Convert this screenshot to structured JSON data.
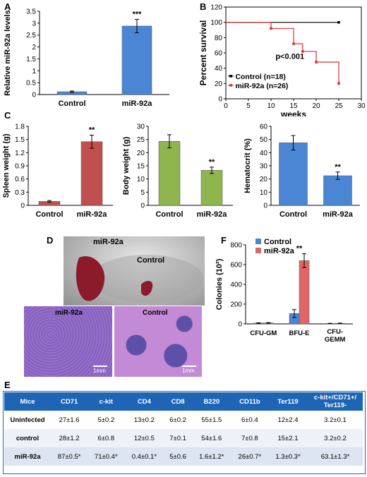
{
  "panels": {
    "A": "A",
    "B": "B",
    "C": "C",
    "D": "D",
    "E": "E",
    "F": "F"
  },
  "chart_data": [
    {
      "id": "A",
      "type": "bar",
      "categories": [
        "Control",
        "miR-92a"
      ],
      "values": [
        0.12,
        2.88
      ],
      "errors": [
        0.03,
        0.28
      ],
      "colors": [
        "#4a86d4",
        "#4a86d4"
      ],
      "ylabel": "Relative miR-92a levels",
      "ylim": [
        0,
        3.5
      ],
      "yticks": [
        "0",
        "0.5",
        "1",
        "1.5",
        "2",
        "2.5",
        "3",
        "3.5"
      ],
      "annotations": [
        "",
        "***"
      ]
    },
    {
      "id": "B",
      "type": "line",
      "xlabel": "weeks",
      "ylabel": "Percent survival",
      "xlim": [
        0,
        30
      ],
      "ylim": [
        0,
        120
      ],
      "xticks": [
        "0",
        "5",
        "10",
        "15",
        "20",
        "25",
        "30"
      ],
      "yticks": [
        "0",
        "20",
        "40",
        "60",
        "80",
        "100",
        "120"
      ],
      "series": [
        {
          "name": "Control (n=18)",
          "color": "#000000",
          "points": [
            [
              0,
              100
            ],
            [
              25,
              100
            ]
          ]
        },
        {
          "name": "miR-92a (n=26)",
          "color": "#e03030",
          "points": [
            [
              0,
              100
            ],
            [
              10,
              100
            ],
            [
              10,
              92
            ],
            [
              15,
              92
            ],
            [
              15,
              72
            ],
            [
              17,
              72
            ],
            [
              17,
              62
            ],
            [
              20,
              62
            ],
            [
              20,
              48
            ],
            [
              25,
              48
            ],
            [
              25,
              20
            ]
          ]
        }
      ],
      "annotation": "p<0.001"
    },
    {
      "id": "C1",
      "type": "bar",
      "categories": [
        "Control",
        "miR-92a"
      ],
      "values": [
        0.09,
        1.45
      ],
      "errors": [
        0.02,
        0.15
      ],
      "colors": [
        "#c0504d",
        "#c0504d"
      ],
      "ylabel": "Spleen weight (g)",
      "ylim": [
        0,
        1.8
      ],
      "yticks": [
        "0",
        "0.3",
        "0.6",
        "0.9",
        "1.2",
        "1.5",
        "1.8"
      ],
      "annotations": [
        "",
        "**"
      ]
    },
    {
      "id": "C2",
      "type": "bar",
      "categories": [
        "Control",
        "miR-92a"
      ],
      "values": [
        24.3,
        13.3
      ],
      "errors": [
        2.5,
        1.2
      ],
      "colors": [
        "#8fb64e",
        "#8fb64e"
      ],
      "ylabel": "Body weight (g)",
      "ylim": [
        0,
        30
      ],
      "yticks": [
        "0",
        "5",
        "10",
        "15",
        "20",
        "25",
        "30"
      ],
      "annotations": [
        "",
        "**"
      ]
    },
    {
      "id": "C3",
      "type": "bar",
      "categories": [
        "Control",
        "miR-92a"
      ],
      "values": [
        47.5,
        22.5
      ],
      "errors": [
        5.5,
        2.8
      ],
      "colors": [
        "#4a86d4",
        "#4a86d4"
      ],
      "ylabel": "Hematocrit (%)",
      "ylim": [
        0,
        60
      ],
      "yticks": [
        "0",
        "10",
        "20",
        "30",
        "40",
        "50",
        "60"
      ],
      "annotations": [
        "",
        "**"
      ]
    },
    {
      "id": "F",
      "type": "bar",
      "categories": [
        "CFU-GM",
        "BFU-E",
        "CFU-GEMM"
      ],
      "ylabel": "Colonies (10²)",
      "ylim": [
        0,
        800
      ],
      "yticks": [
        "0",
        "200",
        "400",
        "600",
        "800"
      ],
      "series": [
        {
          "name": "Control",
          "color": "#4a86d4",
          "values": [
            8,
            105,
            4
          ],
          "errors": [
            3,
            40,
            2
          ]
        },
        {
          "name": "miR-92a",
          "color": "#e06666",
          "values": [
            10,
            640,
            6
          ],
          "errors": [
            3,
            70,
            2
          ]
        }
      ],
      "annotations": [
        "",
        "**",
        ""
      ]
    }
  ],
  "photo": {
    "spleen_mir": "miR-92a",
    "spleen_ctrl": "Control",
    "hist_mir": "miR-92a",
    "hist_ctrl": "Control",
    "scale1": "1mm",
    "scale2": "1mm"
  },
  "table": {
    "headers": [
      "Mice",
      "CD71",
      "c-kit",
      "CD4",
      "CD8",
      "B220",
      "CD11b",
      "Ter119",
      "c-kit+/CD71+/ Ter119-"
    ],
    "rows": [
      [
        "Uninfected",
        "27±1.6",
        "5±0.2",
        "13±0.2",
        "6±0.2",
        "55±1.5",
        "6±0.4",
        "12±2.4",
        "3.2±0.1"
      ],
      [
        "control",
        "28±1.2",
        "6±0.8",
        "12±0.5",
        "7±0.1",
        "54±1.6",
        "7±0.8",
        "15±2.1",
        "3.2±0.2"
      ],
      [
        "miR-92a",
        "87±0.5*",
        "71±0.4*",
        "0.4±0.1*",
        "5±0.6",
        "1.6±1.2*",
        "26±0.7*",
        "1.3±0.3*",
        "63.1±1.3*"
      ]
    ]
  }
}
